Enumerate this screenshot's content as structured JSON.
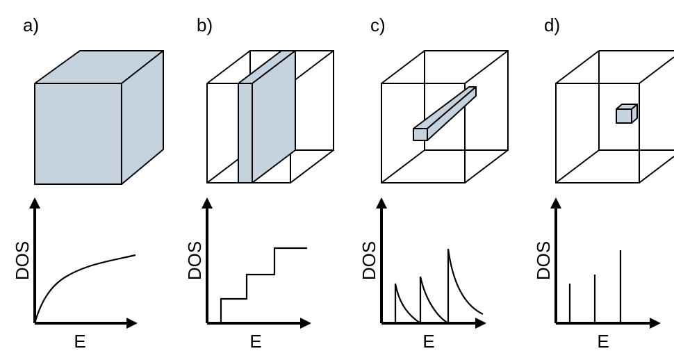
{
  "panels": [
    {
      "label": "a)",
      "y_label": "DOS",
      "x_label": "E"
    },
    {
      "label": "b)",
      "y_label": "DOS",
      "x_label": "E"
    },
    {
      "label": "c)",
      "y_label": "DOS",
      "x_label": "E"
    },
    {
      "label": "d)",
      "y_label": "DOS",
      "x_label": "E"
    }
  ]
}
